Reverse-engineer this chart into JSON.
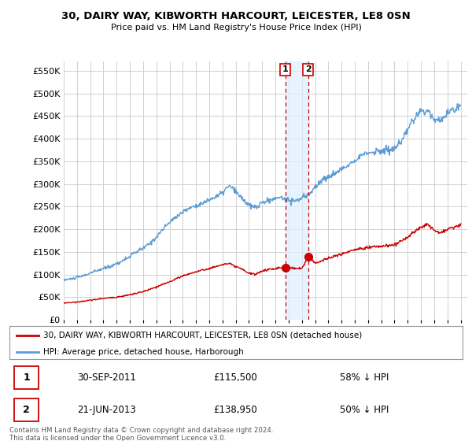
{
  "title": "30, DAIRY WAY, KIBWORTH HARCOURT, LEICESTER, LE8 0SN",
  "subtitle": "Price paid vs. HM Land Registry's House Price Index (HPI)",
  "legend_line1": "30, DAIRY WAY, KIBWORTH HARCOURT, LEICESTER, LE8 0SN (detached house)",
  "legend_line2": "HPI: Average price, detached house, Harborough",
  "table_row1": [
    "1",
    "30-SEP-2011",
    "£115,500",
    "58% ↓ HPI"
  ],
  "table_row2": [
    "2",
    "21-JUN-2013",
    "£138,950",
    "50% ↓ HPI"
  ],
  "footer": "Contains HM Land Registry data © Crown copyright and database right 2024.\nThis data is licensed under the Open Government Licence v3.0.",
  "hpi_color": "#5b9bd5",
  "price_color": "#cc0000",
  "marker1_date": 2011.75,
  "marker2_date": 2013.47,
  "marker1_price": 115500,
  "marker2_price": 138950,
  "ylim": [
    0,
    570000
  ],
  "xlim": [
    1995.0,
    2025.5
  ],
  "background_color": "#ffffff",
  "grid_color": "#d0d0d0",
  "vline_color": "#cc0000",
  "shade_color": "#ddeeff"
}
